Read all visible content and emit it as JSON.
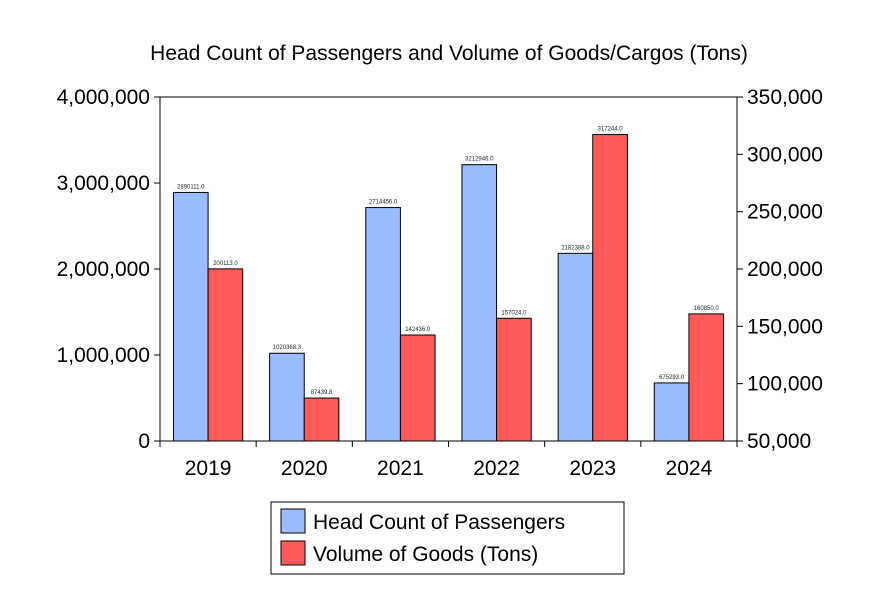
{
  "chart_data": {
    "type": "bar",
    "title": "Head Count of Passengers and Volume of Goods/Cargos (Tons)",
    "categories": [
      "2019",
      "2020",
      "2021",
      "2022",
      "2023",
      "2024"
    ],
    "series": [
      {
        "name": "Head Count of Passengers",
        "axis": "left",
        "color": "#99bbff",
        "values": [
          2890111.0,
          1020368.3,
          2714456.0,
          3212946.0,
          2182388.0,
          675293.0
        ],
        "labels": [
          "2890111.0",
          "1020368.3",
          "2714456.0",
          "3212946.0",
          "2182388.0",
          "675293.0"
        ]
      },
      {
        "name": "Volume of Goods (Tons)",
        "axis": "right",
        "color": "#ff5959",
        "values": [
          200113.0,
          87439.8,
          142436.0,
          157024.0,
          317244.0,
          160850.0
        ],
        "labels": [
          "200113.0",
          "87439.8",
          "142436.0",
          "157024.0",
          "317244.0",
          "160850.0"
        ]
      }
    ],
    "y_left": {
      "lim": [
        0,
        4000000
      ],
      "ticks": [
        0,
        1000000,
        2000000,
        3000000,
        4000000
      ],
      "tick_labels": [
        "0",
        "1,000,000",
        "2,000,000",
        "3,000,000",
        "4,000,000"
      ]
    },
    "y_right": {
      "lim": [
        50000,
        350000
      ],
      "ticks": [
        50000,
        100000,
        150000,
        200000,
        250000,
        300000,
        350000
      ],
      "tick_labels": [
        "50,000",
        "100,000",
        "150,000",
        "200,000",
        "250,000",
        "300,000",
        "350,000"
      ]
    },
    "grid": false,
    "legend_position": "bottom-center"
  }
}
